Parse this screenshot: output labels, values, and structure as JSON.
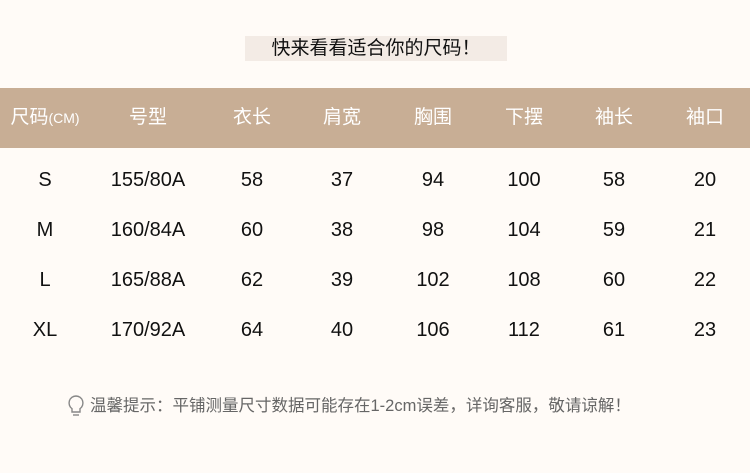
{
  "title": "快来看看适合你的尺码！",
  "colors": {
    "header_band": "#c8ae95",
    "background": "#fffbf7",
    "title_bg": "#f3ebe5"
  },
  "table": {
    "headers": [
      "尺码",
      "号型",
      "衣长",
      "肩宽",
      "胸围",
      "下摆",
      "袖长",
      "袖口"
    ],
    "header_unit": "(CM)",
    "rows": [
      [
        "S",
        "155/80A",
        "58",
        "37",
        "94",
        "100",
        "58",
        "20"
      ],
      [
        "M",
        "160/84A",
        "60",
        "38",
        "98",
        "104",
        "59",
        "21"
      ],
      [
        "L",
        "165/88A",
        "62",
        "39",
        "102",
        "108",
        "60",
        "22"
      ],
      [
        "XL",
        "170/92A",
        "64",
        "40",
        "106",
        "112",
        "61",
        "23"
      ]
    ]
  },
  "tip": {
    "icon": "lightbulb-icon",
    "text": "温馨提示：平铺测量尺寸数据可能存在1-2cm误差，详询客服，敬请谅解！"
  }
}
